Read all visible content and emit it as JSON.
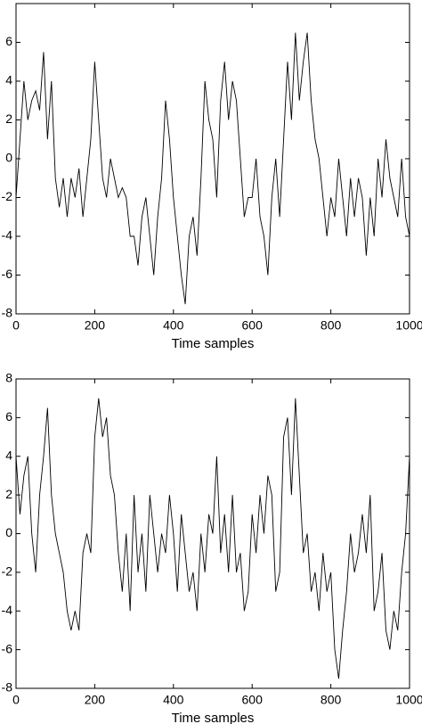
{
  "chart_data": [
    {
      "type": "line",
      "xlabel": "Time samples",
      "x": [
        0,
        10,
        20,
        30,
        40,
        50,
        60,
        70,
        80,
        90,
        100,
        110,
        120,
        130,
        140,
        150,
        160,
        170,
        180,
        190,
        200,
        210,
        220,
        230,
        240,
        250,
        260,
        270,
        280,
        290,
        300,
        310,
        320,
        330,
        340,
        350,
        360,
        370,
        380,
        390,
        400,
        410,
        420,
        430,
        440,
        450,
        460,
        470,
        480,
        490,
        500,
        510,
        520,
        530,
        540,
        550,
        560,
        570,
        580,
        590,
        600,
        610,
        620,
        630,
        640,
        650,
        660,
        670,
        680,
        690,
        700,
        710,
        720,
        730,
        740,
        750,
        760,
        770,
        780,
        790,
        800,
        810,
        820,
        830,
        840,
        850,
        860,
        870,
        880,
        890,
        900,
        910,
        920,
        930,
        940,
        950,
        960,
        970,
        980,
        990,
        1000
      ],
      "series": [
        {
          "color": "#000000",
          "values": [
            -2,
            1,
            4,
            2,
            3,
            3.5,
            2.5,
            5.5,
            1,
            4,
            -1,
            -2.5,
            -1,
            -3,
            -1,
            -2,
            -0.5,
            -3,
            -1,
            1,
            5,
            2,
            -1,
            -2,
            0,
            -1,
            -2,
            -1.5,
            -2,
            -4,
            -4,
            -5.5,
            -3,
            -2,
            -4,
            -6,
            -3,
            -1,
            3,
            1,
            -2,
            -4,
            -6,
            -7.5,
            -4,
            -3,
            -5,
            -1,
            4,
            2,
            1,
            -2,
            3,
            5,
            2,
            4,
            3,
            0,
            -3,
            -2,
            -2,
            0,
            -3,
            -4,
            -6,
            -2,
            0,
            -3,
            1,
            5,
            2,
            6.5,
            3,
            5,
            6.5,
            3,
            1,
            0,
            -2,
            -4,
            -2,
            -3,
            0,
            -2,
            -4,
            -1,
            -3,
            -1,
            -2,
            -5,
            -2,
            -4,
            0,
            -2,
            1,
            -1,
            -2,
            -3,
            0,
            -3,
            -4
          ]
        }
      ],
      "xlim": [
        0,
        1000
      ],
      "ylim": [
        -8,
        8
      ],
      "xticks": [
        0,
        200,
        400,
        600,
        800,
        1000
      ],
      "yticks": [
        -8,
        -6,
        -4,
        -2,
        0,
        2,
        4,
        6
      ]
    },
    {
      "type": "line",
      "xlabel": "Time samples",
      "x": [
        0,
        10,
        20,
        30,
        40,
        50,
        60,
        70,
        80,
        90,
        100,
        110,
        120,
        130,
        140,
        150,
        160,
        170,
        180,
        190,
        200,
        210,
        220,
        230,
        240,
        250,
        260,
        270,
        280,
        290,
        300,
        310,
        320,
        330,
        340,
        350,
        360,
        370,
        380,
        390,
        400,
        410,
        420,
        430,
        440,
        450,
        460,
        470,
        480,
        490,
        500,
        510,
        520,
        530,
        540,
        550,
        560,
        570,
        580,
        590,
        600,
        610,
        620,
        630,
        640,
        650,
        660,
        670,
        680,
        690,
        700,
        710,
        720,
        730,
        740,
        750,
        760,
        770,
        780,
        790,
        800,
        810,
        820,
        830,
        840,
        850,
        860,
        870,
        880,
        890,
        900,
        910,
        920,
        930,
        940,
        950,
        960,
        970,
        980,
        990,
        1000
      ],
      "series": [
        {
          "color": "#000000",
          "values": [
            4,
            1,
            3,
            4,
            0,
            -2,
            2,
            4,
            6.5,
            2,
            0,
            -1,
            -2,
            -4,
            -5,
            -4,
            -5,
            -1,
            0,
            -1,
            5,
            7,
            5,
            6,
            3,
            2,
            -1,
            -3,
            0,
            -4,
            2,
            -2,
            0,
            -3,
            2,
            0,
            -2,
            0,
            -1,
            2,
            0,
            -3,
            1,
            -1,
            -3,
            -2,
            -4,
            0,
            -2,
            1,
            0,
            4,
            -1,
            1,
            -2,
            2,
            -2,
            -1,
            -4,
            -3,
            1,
            -1,
            2,
            0,
            3,
            2,
            -3,
            -2,
            5,
            6,
            2,
            7,
            3,
            -1,
            0,
            -3,
            -2,
            -4,
            -1,
            -3,
            -2,
            -6,
            -7.5,
            -5,
            -3,
            0,
            -2,
            -1,
            1,
            -1,
            2,
            -4,
            -3,
            -1,
            -5,
            -6,
            -4,
            -5,
            -2,
            0,
            4
          ]
        }
      ],
      "xlim": [
        0,
        1000
      ],
      "ylim": [
        -8,
        8
      ],
      "xticks": [
        0,
        200,
        400,
        600,
        800,
        1000
      ],
      "yticks": [
        -8,
        -6,
        -4,
        -2,
        0,
        2,
        4,
        6,
        8
      ]
    }
  ]
}
